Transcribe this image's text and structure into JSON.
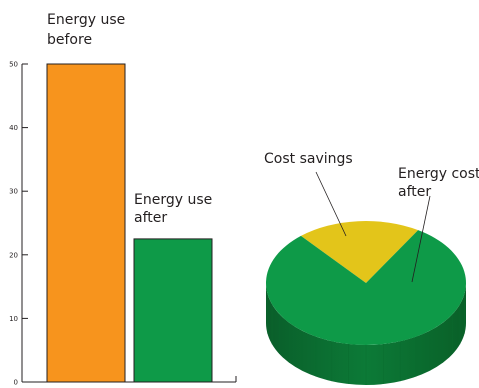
{
  "chart_data": [
    {
      "type": "bar",
      "categories": [
        "Energy use before",
        "Energy use after"
      ],
      "values": [
        50,
        22.5
      ],
      "ylim": [
        0,
        50
      ],
      "yticks": [
        "0",
        "10",
        "20",
        "30",
        "40",
        "50"
      ],
      "grid": false,
      "colors": [
        "#f7941d",
        "#0e9a48"
      ],
      "annotations": {
        "before": [
          "Energy use",
          "before"
        ],
        "after": [
          "Energy use",
          "after"
        ]
      }
    },
    {
      "type": "pie",
      "slices": [
        {
          "label": "Cost savings",
          "value": 0.2,
          "color": "#e3c51a"
        },
        {
          "label": "Energy cost after",
          "value": 0.8,
          "color": "#0e9a48"
        }
      ],
      "annotations": {
        "savings": [
          "Cost savings"
        ],
        "cost_after": [
          "Energy cost",
          "after"
        ]
      }
    }
  ]
}
